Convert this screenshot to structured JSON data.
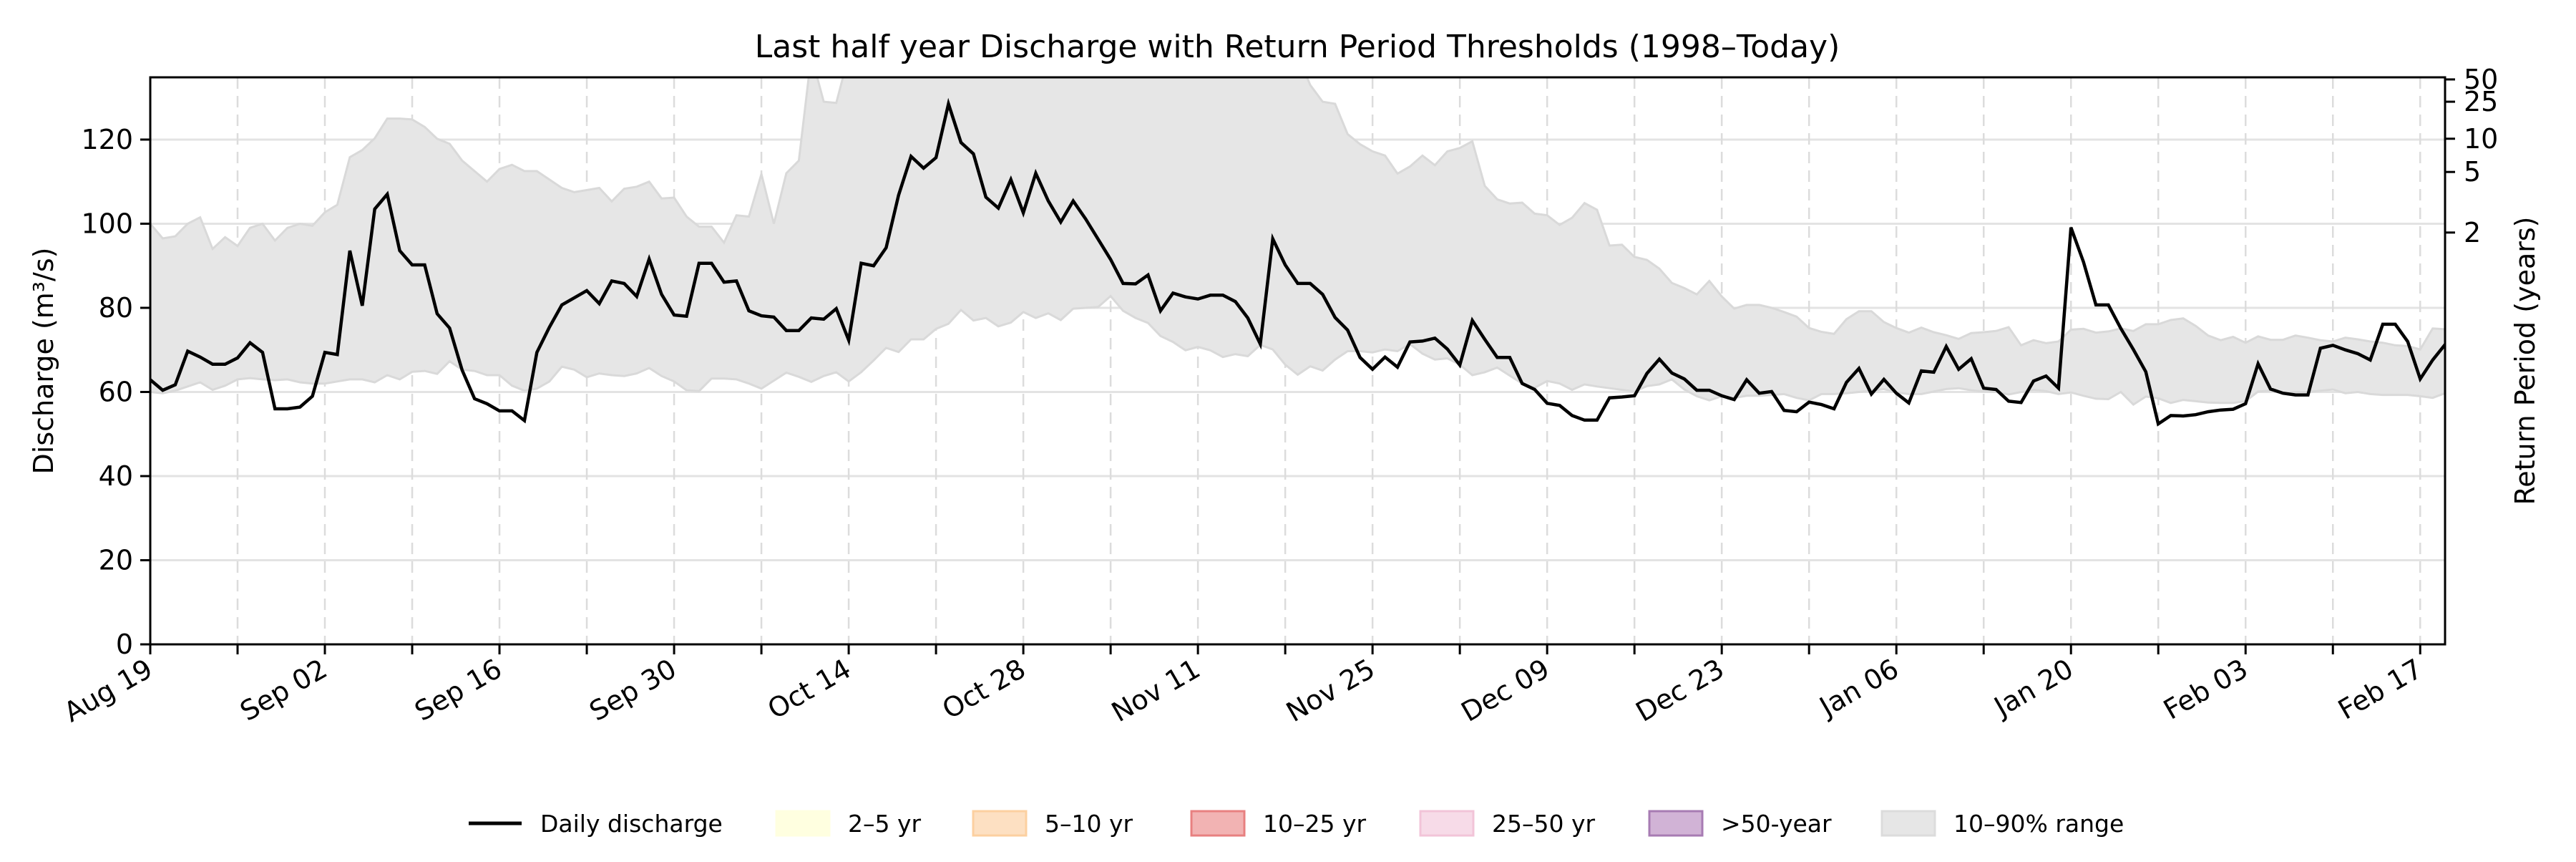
{
  "chart_data": {
    "type": "line",
    "title": "Last half year Discharge with Return Period Thresholds (1998–Today)",
    "xlabel": "",
    "ylabel": "Discharge (m³/s)",
    "y2label": "Return Period (years)",
    "ylim": [
      0,
      134.8
    ],
    "yticks": [
      0,
      20,
      40,
      60,
      80,
      100,
      120
    ],
    "y2ticks": [
      {
        "label": "2",
        "value": 97.9
      },
      {
        "label": "5",
        "value": 112.3
      },
      {
        "label": "10",
        "value": 120.2
      },
      {
        "label": "25",
        "value": 129.0
      },
      {
        "label": "50",
        "value": 134.3
      }
    ],
    "x_start_date": "Aug 19",
    "x_range_days": [
      0,
      184
    ],
    "x_minor_tick_every_days": 7,
    "xticks": [
      {
        "day": 0,
        "label": "Aug 19"
      },
      {
        "day": 14,
        "label": "Sep 02"
      },
      {
        "day": 28,
        "label": "Sep 16"
      },
      {
        "day": 42,
        "label": "Sep 30"
      },
      {
        "day": 56,
        "label": "Oct 14"
      },
      {
        "day": 70,
        "label": "Oct 28"
      },
      {
        "day": 84,
        "label": "Nov 11"
      },
      {
        "day": 98,
        "label": "Nov 25"
      },
      {
        "day": 112,
        "label": "Dec 09"
      },
      {
        "day": 126,
        "label": "Dec 23"
      },
      {
        "day": 140,
        "label": "Jan 06"
      },
      {
        "day": 154,
        "label": "Jan 20"
      },
      {
        "day": 168,
        "label": "Feb 03"
      },
      {
        "day": 182,
        "label": "Feb 17"
      }
    ],
    "grid": {
      "horizontal": true,
      "vertical_dashed_weekly": true
    },
    "legend_position": "bottom-center",
    "series": [
      {
        "name": "Daily discharge",
        "type": "line",
        "color": "#000000",
        "values": [
          62.9,
          60.4,
          61.7,
          69.7,
          68.3,
          66.6,
          66.6,
          68.1,
          71.7,
          69.4,
          56.0,
          56.0,
          56.4,
          59.0,
          69.4,
          68.9,
          93.6,
          80.5,
          103.5,
          107.0,
          93.6,
          90.2,
          90.2,
          78.6,
          75.2,
          65.2,
          58.4,
          57.2,
          55.5,
          55.5,
          53.2,
          69.4,
          75.4,
          80.7,
          82.4,
          84.1,
          81.0,
          86.4,
          85.8,
          82.7,
          91.6,
          83.2,
          78.3,
          78.0,
          90.6,
          90.6,
          86.1,
          86.4,
          79.3,
          78.1,
          77.8,
          74.6,
          74.6,
          77.6,
          77.3,
          79.8,
          72.3,
          90.6,
          90.0,
          94.3,
          106.8,
          116.0,
          113.2,
          115.7,
          128.5,
          119.3,
          116.6,
          106.3,
          103.7,
          110.5,
          102.6,
          112.0,
          105.4,
          100.4,
          105.4,
          101.1,
          96.3,
          91.5,
          85.8,
          85.7,
          87.8,
          79.3,
          83.5,
          82.6,
          82.1,
          83.0,
          83.0,
          81.5,
          77.6,
          71.4,
          96.4,
          90.2,
          85.8,
          85.8,
          83.2,
          77.7,
          74.7,
          68.2,
          65.4,
          68.3,
          65.9,
          71.9,
          72.1,
          72.8,
          70.2,
          66.4,
          77.0,
          72.5,
          68.2,
          68.2,
          62.0,
          60.6,
          57.3,
          56.8,
          54.4,
          53.3,
          53.3,
          58.6,
          58.8,
          59.1,
          64.4,
          67.8,
          64.5,
          63.1,
          60.4,
          60.4,
          59.1,
          58.2,
          62.9,
          59.7,
          60.1,
          55.6,
          55.3,
          57.6,
          57.0,
          56.0,
          62.3,
          65.6,
          59.5,
          63.0,
          59.7,
          57.4,
          65.0,
          64.7,
          70.8,
          65.4,
          67.9,
          60.9,
          60.6,
          57.8,
          57.5,
          62.6,
          63.8,
          60.9,
          99.1,
          90.9,
          80.7,
          80.7,
          75.1,
          70.1,
          64.8,
          52.4,
          54.4,
          54.3,
          54.6,
          55.3,
          55.7,
          55.9,
          57.2,
          66.7,
          60.7,
          59.7,
          59.3,
          59.3,
          70.4,
          71.1,
          70.0,
          69.1,
          67.6,
          76.1,
          76.1,
          72.0,
          63.1,
          67.6,
          71.3
        ]
      },
      {
        "name": "10–90% range",
        "type": "band",
        "color": "#e6e6e6",
        "edge_color": "#d9d9d9",
        "upper": [
          100,
          96.5,
          97,
          100,
          101.5,
          94,
          96.8,
          94.7,
          99,
          100,
          96,
          99,
          100,
          99.5,
          102.7,
          104.5,
          115.8,
          117.5,
          120.3,
          125,
          125,
          124.8,
          123,
          120.2,
          119,
          115,
          112.5,
          110,
          113,
          114,
          112.5,
          112.5,
          110.5,
          108.5,
          107.5,
          108,
          108.5,
          105.3,
          108.3,
          108.8,
          110,
          106,
          106.2,
          101.7,
          99.3,
          99.3,
          95.5,
          102,
          101.7,
          111.8,
          100,
          112,
          115,
          140,
          129,
          128.7,
          140,
          140,
          140,
          140,
          140,
          140,
          140,
          140,
          140,
          140,
          140,
          140,
          140,
          140,
          140,
          140,
          140,
          140,
          140,
          140,
          140,
          140,
          140,
          140,
          140,
          140,
          140,
          140,
          140,
          140,
          140,
          140,
          140,
          140,
          140,
          140,
          140,
          133,
          129,
          128.5,
          121.3,
          118.9,
          117.2,
          116.2,
          111.9,
          113.6,
          116.2,
          113.9,
          117.2,
          118,
          119.6,
          109,
          105.8,
          104.8,
          105,
          102.4,
          102,
          99.7,
          101.4,
          104.9,
          103.3,
          94.8,
          95,
          92.1,
          91.4,
          89.3,
          85.9,
          84.7,
          83.2,
          86.4,
          82.7,
          79.8,
          80.7,
          80.7,
          80,
          79,
          77.9,
          75.2,
          74.3,
          73.8,
          77.3,
          79.2,
          79.2,
          76.6,
          75.2,
          74.1,
          75.3,
          74.2,
          73.5,
          72.6,
          74,
          74.2,
          74.5,
          75.4,
          71.1,
          72.3,
          71.6,
          72,
          74.8,
          75,
          74.1,
          74.4,
          75.1,
          74.5,
          76.1,
          76.1,
          77.1,
          77.5,
          75.7,
          73.4,
          72.3,
          73.1,
          71.7,
          73.2,
          72.4,
          72.4,
          73.4,
          72.9,
          72.3,
          72,
          72.9,
          72.5,
          72,
          71.7,
          71.1,
          70.9,
          70.1,
          75.1,
          74.9
        ],
        "lower": [
          60,
          59.7,
          60.3,
          61.3,
          62.3,
          60.5,
          61.5,
          63,
          63.3,
          63,
          62.8,
          63,
          62.3,
          62,
          62,
          62.5,
          63,
          63,
          62.3,
          64,
          63,
          64.8,
          65,
          64.3,
          67.3,
          65.3,
          65,
          64,
          64,
          61.5,
          60.3,
          60.8,
          62.5,
          66,
          65.3,
          63.5,
          64.4,
          64,
          63.8,
          64.4,
          65.7,
          63.8,
          62.5,
          60.4,
          60.2,
          63.2,
          63.2,
          63,
          62,
          60.8,
          62.7,
          64.6,
          63.6,
          62.4,
          63.8,
          64.7,
          62.5,
          64.7,
          67.5,
          70.5,
          69.5,
          72.5,
          72.5,
          75,
          76.2,
          79.5,
          77,
          77.6,
          75.6,
          76.5,
          79,
          77.6,
          78.7,
          77.1,
          79.8,
          80,
          80.2,
          82.8,
          79.3,
          77.6,
          76.4,
          73.3,
          71.9,
          69.9,
          70.7,
          69.9,
          68.3,
          69,
          68.5,
          71.2,
          70.1,
          66.5,
          64.1,
          66.1,
          65.1,
          67.7,
          69.7,
          69.7,
          69.4,
          70.1,
          69.7,
          71.4,
          69.1,
          67.7,
          68,
          66.5,
          64,
          64.7,
          65.8,
          63.9,
          62,
          61,
          62.6,
          62,
          60.5,
          61.8,
          61.3,
          60.9,
          60.5,
          60.1,
          61.4,
          61.8,
          63,
          60.6,
          59,
          58,
          59,
          58.6,
          59.1,
          59.1,
          59.3,
          59.5,
          58.6,
          58,
          59.5,
          59.5,
          59.7,
          60,
          60.3,
          60.7,
          59.9,
          59.5,
          59.5,
          60.1,
          60.7,
          60.9,
          60.4,
          60.1,
          60,
          59.4,
          60,
          60.5,
          60.2,
          59.5,
          59.9,
          59.1,
          58.4,
          58.3,
          60,
          57,
          58.9,
          58.5,
          57.4,
          58.1,
          57.8,
          57.5,
          57.4,
          57.4,
          57.8,
          60.1,
          60.3,
          59.7,
          60,
          60,
          60.3,
          60.6,
          59.7,
          60,
          59.5,
          59.3,
          59.3,
          59.3,
          59,
          58.6,
          59.7
        ]
      }
    ]
  },
  "legend": {
    "items": [
      {
        "label": "Daily discharge",
        "kind": "line",
        "color": "#000000"
      },
      {
        "label": "2–5 yr",
        "kind": "patch",
        "color": "#ffffe0",
        "edge": "#ffffe0"
      },
      {
        "label": "5–10 yr",
        "kind": "patch",
        "color": "#fde0c2",
        "edge": "#fcd0a0"
      },
      {
        "label": "10–25 yr",
        "kind": "patch",
        "color": "#f2b3b3",
        "edge": "#e88080"
      },
      {
        "label": "25–50 yr",
        "kind": "patch",
        "color": "#f7dbe8",
        "edge": "#f2c4d8"
      },
      {
        "label": ">50-year",
        "kind": "patch",
        "color": "#d1b3d6",
        "edge": "#a77bb3"
      },
      {
        "label": "10–90% range",
        "kind": "patch",
        "color": "#e6e6e6",
        "edge": "#dcdcdc"
      }
    ]
  }
}
